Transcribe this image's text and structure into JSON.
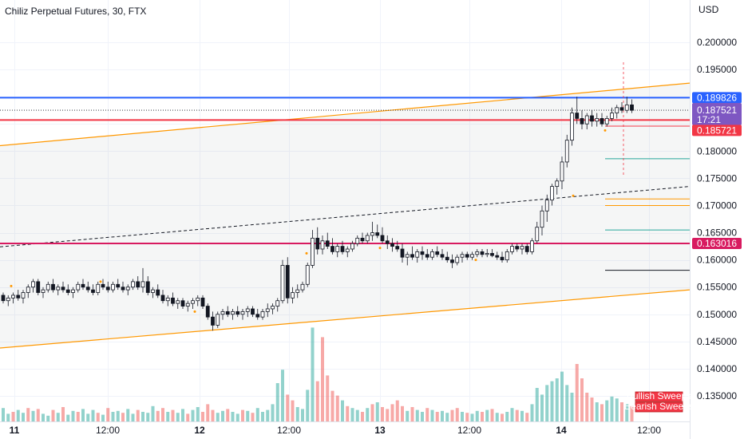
{
  "header": {
    "title": "Chiliz Perpetual Futures, 30, FTX"
  },
  "price_axis": {
    "currency": "USD",
    "ticks": [
      "0.200000",
      "0.195000",
      "0.190000",
      "0.185000",
      "0.180000",
      "0.175000",
      "0.170000",
      "0.165000",
      "0.160000",
      "0.155000",
      "0.150000",
      "0.145000",
      "0.140000",
      "0.135000"
    ]
  },
  "time_axis": {
    "labels": [
      "11",
      "12:00",
      "12",
      "12:00",
      "13",
      "12:00",
      "14",
      "12:00"
    ]
  },
  "price_labels": [
    {
      "text": "0.189826",
      "color": "#2962ff"
    },
    {
      "text": "0.187521",
      "color": "#7e57c2"
    },
    {
      "text": "17:21",
      "color": "#7e57c2"
    },
    {
      "text": "0.185721",
      "color": "#f23645"
    },
    {
      "text": "0.163016",
      "color": "#d81b60"
    }
  ],
  "legend": {
    "bullish": "Bullish Sweeps",
    "bearish": "Bearish Sweeps"
  },
  "colors": {
    "up": "#26a69a",
    "down": "#ef5350",
    "channel": "#ff9800",
    "blue_level": "#2962ff",
    "red_level": "#f23645",
    "magenta_level": "#d81b60"
  },
  "chart_data": {
    "type": "candlestick",
    "symbol": "Chiliz Perpetual Futures",
    "interval": "30",
    "exchange": "FTX",
    "currency": "USD",
    "ylim": [
      0.1315,
      0.2085
    ],
    "last_price": 0.187521,
    "countdown": "17:21",
    "horizontal_levels": [
      0.189826,
      0.185721,
      0.163016
    ],
    "channel": {
      "upper_start": 0.181,
      "upper_end": 0.1925,
      "lower_start": 0.1438,
      "lower_end": 0.1545
    },
    "series": [
      {
        "name": "OHLC",
        "values": [
          [
            0.1535,
            0.154,
            0.152,
            0.1525
          ],
          [
            0.1525,
            0.1535,
            0.1515,
            0.153
          ],
          [
            0.153,
            0.154,
            0.152,
            0.1535
          ],
          [
            0.1535,
            0.1545,
            0.1525,
            0.153
          ],
          [
            0.153,
            0.1545,
            0.152,
            0.154
          ],
          [
            0.154,
            0.1555,
            0.153,
            0.155
          ],
          [
            0.155,
            0.1565,
            0.154,
            0.156
          ],
          [
            0.156,
            0.1565,
            0.1535,
            0.154
          ],
          [
            0.154,
            0.155,
            0.153,
            0.1545
          ],
          [
            0.1545,
            0.156,
            0.154,
            0.1555
          ],
          [
            0.1555,
            0.1565,
            0.154,
            0.1545
          ],
          [
            0.1545,
            0.1555,
            0.1535,
            0.155
          ],
          [
            0.155,
            0.156,
            0.154,
            0.1545
          ],
          [
            0.1545,
            0.1555,
            0.1535,
            0.154
          ],
          [
            0.154,
            0.155,
            0.153,
            0.1545
          ],
          [
            0.1545,
            0.156,
            0.154,
            0.1555
          ],
          [
            0.1555,
            0.1565,
            0.1545,
            0.155
          ],
          [
            0.155,
            0.156,
            0.154,
            0.1545
          ],
          [
            0.1545,
            0.1555,
            0.1535,
            0.154
          ],
          [
            0.154,
            0.156,
            0.1535,
            0.1555
          ],
          [
            0.1555,
            0.1565,
            0.1545,
            0.155
          ],
          [
            0.155,
            0.156,
            0.154,
            0.1545
          ],
          [
            0.1545,
            0.156,
            0.154,
            0.1555
          ],
          [
            0.1555,
            0.1565,
            0.1545,
            0.155
          ],
          [
            0.155,
            0.156,
            0.154,
            0.1545
          ],
          [
            0.1545,
            0.1555,
            0.1535,
            0.155
          ],
          [
            0.155,
            0.1565,
            0.1545,
            0.156
          ],
          [
            0.156,
            0.157,
            0.1545,
            0.155
          ],
          [
            0.155,
            0.1585,
            0.154,
            0.156
          ],
          [
            0.156,
            0.157,
            0.1535,
            0.154
          ],
          [
            0.154,
            0.155,
            0.153,
            0.1545
          ],
          [
            0.1545,
            0.1555,
            0.153,
            0.1535
          ],
          [
            0.1535,
            0.1545,
            0.152,
            0.1525
          ],
          [
            0.1525,
            0.1535,
            0.1515,
            0.153
          ],
          [
            0.153,
            0.154,
            0.1515,
            0.152
          ],
          [
            0.152,
            0.153,
            0.151,
            0.1525
          ],
          [
            0.1525,
            0.153,
            0.151,
            0.1515
          ],
          [
            0.1515,
            0.1525,
            0.1505,
            0.152
          ],
          [
            0.152,
            0.153,
            0.151,
            0.1525
          ],
          [
            0.1525,
            0.1535,
            0.1515,
            0.153
          ],
          [
            0.153,
            0.1535,
            0.151,
            0.1515
          ],
          [
            0.1515,
            0.152,
            0.149,
            0.1495
          ],
          [
            0.1495,
            0.1505,
            0.147,
            0.148
          ],
          [
            0.148,
            0.1505,
            0.1475,
            0.15
          ],
          [
            0.15,
            0.151,
            0.149,
            0.1505
          ],
          [
            0.1505,
            0.1515,
            0.1495,
            0.15
          ],
          [
            0.15,
            0.151,
            0.149,
            0.1505
          ],
          [
            0.1505,
            0.1515,
            0.1495,
            0.15
          ],
          [
            0.15,
            0.151,
            0.149,
            0.1505
          ],
          [
            0.1505,
            0.1515,
            0.1495,
            0.151
          ],
          [
            0.151,
            0.1515,
            0.1495,
            0.15
          ],
          [
            0.15,
            0.151,
            0.149,
            0.1495
          ],
          [
            0.1495,
            0.151,
            0.149,
            0.1505
          ],
          [
            0.1505,
            0.152,
            0.1495,
            0.151
          ],
          [
            0.151,
            0.152,
            0.15,
            0.1515
          ],
          [
            0.1515,
            0.153,
            0.1505,
            0.1525
          ],
          [
            0.1525,
            0.16,
            0.152,
            0.159
          ],
          [
            0.159,
            0.1605,
            0.152,
            0.153
          ],
          [
            0.153,
            0.155,
            0.152,
            0.154
          ],
          [
            0.154,
            0.1555,
            0.153,
            0.1545
          ],
          [
            0.1545,
            0.156,
            0.154,
            0.1555
          ],
          [
            0.1555,
            0.1595,
            0.155,
            0.159
          ],
          [
            0.159,
            0.1655,
            0.1585,
            0.164
          ],
          [
            0.164,
            0.166,
            0.161,
            0.162
          ],
          [
            0.162,
            0.1645,
            0.161,
            0.1635
          ],
          [
            0.1635,
            0.165,
            0.162,
            0.1625
          ],
          [
            0.1625,
            0.164,
            0.161,
            0.1615
          ],
          [
            0.1615,
            0.163,
            0.1605,
            0.1625
          ],
          [
            0.1625,
            0.1635,
            0.161,
            0.1615
          ],
          [
            0.1615,
            0.1625,
            0.1605,
            0.162
          ],
          [
            0.162,
            0.1635,
            0.1615,
            0.163
          ],
          [
            0.163,
            0.1645,
            0.1625,
            0.164
          ],
          [
            0.164,
            0.165,
            0.163,
            0.1635
          ],
          [
            0.1635,
            0.165,
            0.163,
            0.1645
          ],
          [
            0.1645,
            0.167,
            0.1635,
            0.165
          ],
          [
            0.165,
            0.1665,
            0.164,
            0.1645
          ],
          [
            0.1645,
            0.166,
            0.163,
            0.1635
          ],
          [
            0.1635,
            0.1645,
            0.162,
            0.163
          ],
          [
            0.163,
            0.164,
            0.1615,
            0.1625
          ],
          [
            0.1625,
            0.1635,
            0.1615,
            0.162
          ],
          [
            0.162,
            0.163,
            0.1595,
            0.1605
          ],
          [
            0.1605,
            0.1615,
            0.159,
            0.161
          ],
          [
            0.161,
            0.1625,
            0.16,
            0.1605
          ],
          [
            0.1605,
            0.162,
            0.1595,
            0.1615
          ],
          [
            0.1615,
            0.1625,
            0.16,
            0.161
          ],
          [
            0.161,
            0.162,
            0.16,
            0.1605
          ],
          [
            0.1605,
            0.162,
            0.16,
            0.1615
          ],
          [
            0.1615,
            0.1625,
            0.1605,
            0.161
          ],
          [
            0.161,
            0.162,
            0.16,
            0.1605
          ],
          [
            0.1605,
            0.1615,
            0.1595,
            0.16
          ],
          [
            0.16,
            0.161,
            0.1585,
            0.1595
          ],
          [
            0.1595,
            0.161,
            0.159,
            0.1605
          ],
          [
            0.1605,
            0.1615,
            0.1595,
            0.161
          ],
          [
            0.161,
            0.1615,
            0.16,
            0.1605
          ],
          [
            0.1605,
            0.1615,
            0.16,
            0.161
          ],
          [
            0.161,
            0.162,
            0.1605,
            0.1615
          ],
          [
            0.1615,
            0.162,
            0.1605,
            0.161
          ],
          [
            0.161,
            0.162,
            0.1605,
            0.1612
          ],
          [
            0.1612,
            0.162,
            0.1605,
            0.1608
          ],
          [
            0.1608,
            0.1615,
            0.16,
            0.1605
          ],
          [
            0.1605,
            0.1615,
            0.1595,
            0.16
          ],
          [
            0.16,
            0.162,
            0.1595,
            0.1615
          ],
          [
            0.1615,
            0.163,
            0.161,
            0.1625
          ],
          [
            0.1625,
            0.163,
            0.1615,
            0.162
          ],
          [
            0.162,
            0.163,
            0.161,
            0.1625
          ],
          [
            0.1625,
            0.163,
            0.161,
            0.1615
          ],
          [
            0.1615,
            0.164,
            0.161,
            0.1635
          ],
          [
            0.1635,
            0.167,
            0.163,
            0.166
          ],
          [
            0.166,
            0.17,
            0.1645,
            0.169
          ],
          [
            0.169,
            0.172,
            0.167,
            0.171
          ],
          [
            0.171,
            0.174,
            0.17,
            0.1735
          ],
          [
            0.1735,
            0.175,
            0.172,
            0.1745
          ],
          [
            0.1745,
            0.179,
            0.173,
            0.178
          ],
          [
            0.178,
            0.183,
            0.177,
            0.182
          ],
          [
            0.182,
            0.188,
            0.181,
            0.187
          ],
          [
            0.187,
            0.19,
            0.185,
            0.186
          ],
          [
            0.186,
            0.1875,
            0.184,
            0.185
          ],
          [
            0.185,
            0.187,
            0.184,
            0.1865
          ],
          [
            0.1865,
            0.1875,
            0.1845,
            0.1855
          ],
          [
            0.1855,
            0.187,
            0.1845,
            0.186
          ],
          [
            0.186,
            0.187,
            0.1845,
            0.185
          ],
          [
            0.185,
            0.1865,
            0.1845,
            0.186
          ],
          [
            0.186,
            0.188,
            0.1855,
            0.187
          ],
          [
            0.187,
            0.1885,
            0.186,
            0.188
          ],
          [
            0.188,
            0.189,
            0.187,
            0.1875
          ],
          [
            0.1875,
            0.19,
            0.187,
            0.1885
          ],
          [
            0.1885,
            0.1895,
            0.187,
            0.1875
          ]
        ]
      }
    ],
    "volume": [
      [
        14,
        1
      ],
      [
        8,
        1
      ],
      [
        10,
        0
      ],
      [
        12,
        1
      ],
      [
        9,
        1
      ],
      [
        14,
        0
      ],
      [
        11,
        1
      ],
      [
        13,
        0
      ],
      [
        8,
        1
      ],
      [
        6,
        1
      ],
      [
        12,
        0
      ],
      [
        9,
        1
      ],
      [
        15,
        0
      ],
      [
        7,
        1
      ],
      [
        11,
        1
      ],
      [
        10,
        0
      ],
      [
        13,
        1
      ],
      [
        8,
        1
      ],
      [
        12,
        1
      ],
      [
        9,
        0
      ],
      [
        7,
        1
      ],
      [
        14,
        0
      ],
      [
        10,
        1
      ],
      [
        11,
        1
      ],
      [
        9,
        0
      ],
      [
        13,
        1
      ],
      [
        8,
        1
      ],
      [
        12,
        0
      ],
      [
        10,
        1
      ],
      [
        9,
        1
      ],
      [
        16,
        1
      ],
      [
        11,
        0
      ],
      [
        14,
        0
      ],
      [
        10,
        1
      ],
      [
        12,
        0
      ],
      [
        9,
        1
      ],
      [
        13,
        1
      ],
      [
        8,
        0
      ],
      [
        12,
        1
      ],
      [
        15,
        1
      ],
      [
        10,
        0
      ],
      [
        18,
        0
      ],
      [
        12,
        0
      ],
      [
        9,
        1
      ],
      [
        11,
        1
      ],
      [
        13,
        0
      ],
      [
        10,
        1
      ],
      [
        8,
        1
      ],
      [
        12,
        0
      ],
      [
        11,
        1
      ],
      [
        9,
        0
      ],
      [
        14,
        1
      ],
      [
        10,
        1
      ],
      [
        12,
        1
      ],
      [
        18,
        1
      ],
      [
        40,
        1
      ],
      [
        54,
        1
      ],
      [
        28,
        0
      ],
      [
        22,
        0
      ],
      [
        15,
        1
      ],
      [
        13,
        1
      ],
      [
        33,
        1
      ],
      [
        98,
        1
      ],
      [
        42,
        0
      ],
      [
        88,
        0
      ],
      [
        48,
        0
      ],
      [
        32,
        0
      ],
      [
        27,
        0
      ],
      [
        22,
        1
      ],
      [
        16,
        0
      ],
      [
        14,
        1
      ],
      [
        12,
        1
      ],
      [
        10,
        0
      ],
      [
        14,
        1
      ],
      [
        18,
        0
      ],
      [
        20,
        1
      ],
      [
        15,
        0
      ],
      [
        13,
        0
      ],
      [
        18,
        0
      ],
      [
        22,
        0
      ],
      [
        16,
        0
      ],
      [
        11,
        1
      ],
      [
        15,
        0
      ],
      [
        12,
        1
      ],
      [
        10,
        1
      ],
      [
        14,
        0
      ],
      [
        12,
        1
      ],
      [
        10,
        0
      ],
      [
        11,
        1
      ],
      [
        9,
        1
      ],
      [
        12,
        0
      ],
      [
        14,
        0
      ],
      [
        10,
        1
      ],
      [
        9,
        0
      ],
      [
        8,
        1
      ],
      [
        11,
        1
      ],
      [
        10,
        0
      ],
      [
        12,
        1
      ],
      [
        13,
        0
      ],
      [
        9,
        1
      ],
      [
        8,
        0
      ],
      [
        10,
        1
      ],
      [
        14,
        1
      ],
      [
        12,
        0
      ],
      [
        11,
        1
      ],
      [
        9,
        0
      ],
      [
        18,
        1
      ],
      [
        35,
        1
      ],
      [
        28,
        1
      ],
      [
        38,
        1
      ],
      [
        42,
        1
      ],
      [
        45,
        1
      ],
      [
        52,
        1
      ],
      [
        38,
        1
      ],
      [
        30,
        1
      ],
      [
        60,
        0
      ],
      [
        45,
        0
      ],
      [
        30,
        0
      ],
      [
        25,
        0
      ],
      [
        20,
        1
      ],
      [
        18,
        0
      ],
      [
        22,
        1
      ],
      [
        26,
        1
      ],
      [
        24,
        1
      ],
      [
        20,
        0
      ],
      [
        18,
        1
      ],
      [
        16,
        0
      ]
    ]
  }
}
